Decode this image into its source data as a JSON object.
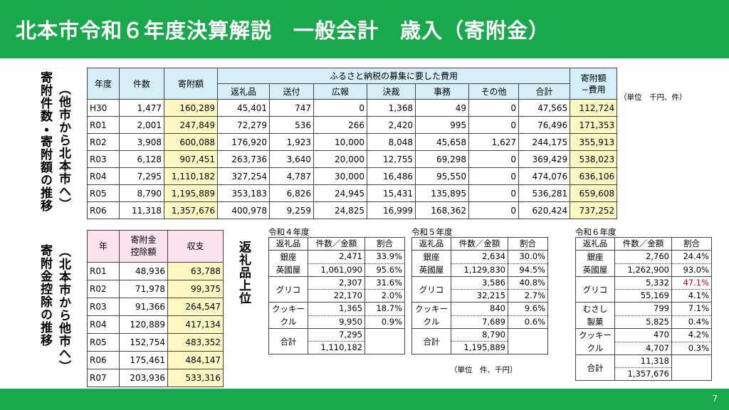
{
  "header": {
    "title": "北本市令和６年度決算解説　一般会計　歳入（寄附金）"
  },
  "page_number": "7",
  "donations": {
    "side_label": "寄附件数・寄附額の推移",
    "side_sublabel": "（他市から北本市へ）",
    "unit_note": "（単位　千円、件）",
    "columns": {
      "year": "年度",
      "count": "件数",
      "amount": "寄附額",
      "cost_group": "ふるさと納税の募集に要した費用",
      "costs": [
        "返礼品",
        "送付",
        "広報",
        "決裁",
        "事務",
        "その他",
        "合計"
      ],
      "net": [
        "寄附額",
        "−費用"
      ]
    },
    "rows": [
      [
        "H30",
        "1,477",
        "160,289",
        "45,401",
        "747",
        "0",
        "1,368",
        "49",
        "0",
        "47,565",
        "112,724"
      ],
      [
        "R01",
        "2,001",
        "247,849",
        "72,279",
        "536",
        "266",
        "2,420",
        "995",
        "0",
        "76,496",
        "171,353"
      ],
      [
        "R02",
        "3,908",
        "600,088",
        "176,920",
        "1,923",
        "10,000",
        "8,048",
        "45,658",
        "1,627",
        "244,175",
        "355,913"
      ],
      [
        "R03",
        "6,128",
        "907,451",
        "263,736",
        "3,640",
        "20,000",
        "12,755",
        "69,298",
        "0",
        "369,429",
        "538,023"
      ],
      [
        "R04",
        "7,295",
        "1,110,182",
        "327,254",
        "4,787",
        "30,000",
        "16,486",
        "95,550",
        "0",
        "474,076",
        "636,106"
      ],
      [
        "R05",
        "8,790",
        "1,195,889",
        "353,183",
        "6,826",
        "24,945",
        "15,431",
        "135,895",
        "0",
        "536,281",
        "659,608"
      ],
      [
        "R06",
        "11,318",
        "1,357,676",
        "400,978",
        "9,259",
        "24,825",
        "16,999",
        "168,362",
        "0",
        "620,424",
        "737,252"
      ]
    ]
  },
  "deductions": {
    "side_label": "寄附金控除の推移",
    "side_sublabel": "（北本市から他市へ）",
    "columns": {
      "year": "年",
      "deduction": [
        "寄附金",
        "控除額"
      ],
      "balance": "収支"
    },
    "rows": [
      [
        "R01",
        "48,936",
        "63,788"
      ],
      [
        "R02",
        "71,978",
        "99,375"
      ],
      [
        "R03",
        "91,366",
        "264,547"
      ],
      [
        "R04",
        "120,889",
        "417,134"
      ],
      [
        "R05",
        "152,754",
        "483,352"
      ],
      [
        "R06",
        "175,461",
        "484,147"
      ],
      [
        "R07",
        "203,936",
        "533,316"
      ]
    ]
  },
  "returns": {
    "side_label": "返礼品上位",
    "unit_note": "（単位　件、千円）",
    "columns": [
      "返礼品",
      "件数／金額",
      "割合"
    ],
    "tables": [
      {
        "year": "令和４年度",
        "items": [
          {
            "name": [
              "銀座",
              "英國屋"
            ],
            "rows": [
              [
                "2,471",
                "33.9%"
              ],
              [
                "1,061,090",
                "95.6%"
              ]
            ]
          },
          {
            "name": [
              "グリコ"
            ],
            "rows": [
              [
                "2,307",
                "31.6%"
              ],
              [
                "22,170",
                "2.0%"
              ]
            ]
          },
          {
            "name": [
              "クッキー",
              "クル"
            ],
            "rows": [
              [
                "1,365",
                "18.7%"
              ],
              [
                "9,950",
                "0.9%"
              ]
            ]
          },
          {
            "name": [
              "合計"
            ],
            "rows": [
              [
                "7,295"
              ],
              [
                "1,110,182"
              ]
            ]
          }
        ]
      },
      {
        "year": "令和５年度",
        "items": [
          {
            "name": [
              "銀座",
              "英國屋"
            ],
            "rows": [
              [
                "2,634",
                "30.0%"
              ],
              [
                "1,129,830",
                "94.5%"
              ]
            ]
          },
          {
            "name": [
              "グリコ"
            ],
            "rows": [
              [
                "3,586",
                "40.8%"
              ],
              [
                "32,215",
                "2.7%"
              ]
            ]
          },
          {
            "name": [
              "クッキー",
              "クル"
            ],
            "rows": [
              [
                "840",
                "9.6%"
              ],
              [
                "7,689",
                "0.6%"
              ]
            ]
          },
          {
            "name": [
              "合計"
            ],
            "rows": [
              [
                "8,790"
              ],
              [
                "1,195,889"
              ]
            ]
          }
        ]
      },
      {
        "year": "令和６年度",
        "items": [
          {
            "name": [
              "銀座",
              "英國屋"
            ],
            "rows": [
              [
                "2,760",
                "24.4%"
              ],
              [
                "1,262,900",
                "93.0%"
              ]
            ]
          },
          {
            "name": [
              "グリコ"
            ],
            "rows": [
              [
                "5,332",
                "47.1%"
              ],
              [
                "55,169",
                "4.1%"
              ]
            ]
          },
          {
            "name": [
              "むさし",
              "製菓"
            ],
            "rows": [
              [
                "799",
                "7.1%"
              ],
              [
                "5,825",
                "0.4%"
              ]
            ]
          },
          {
            "name": [
              "クッキー",
              "クル"
            ],
            "rows": [
              [
                "470",
                "4.2%"
              ],
              [
                "4,707",
                "0.3%"
              ]
            ]
          },
          {
            "name": [
              "合計"
            ],
            "rows": [
              [
                "11,318"
              ],
              [
                "1,357,676"
              ]
            ]
          }
        ]
      }
    ]
  }
}
